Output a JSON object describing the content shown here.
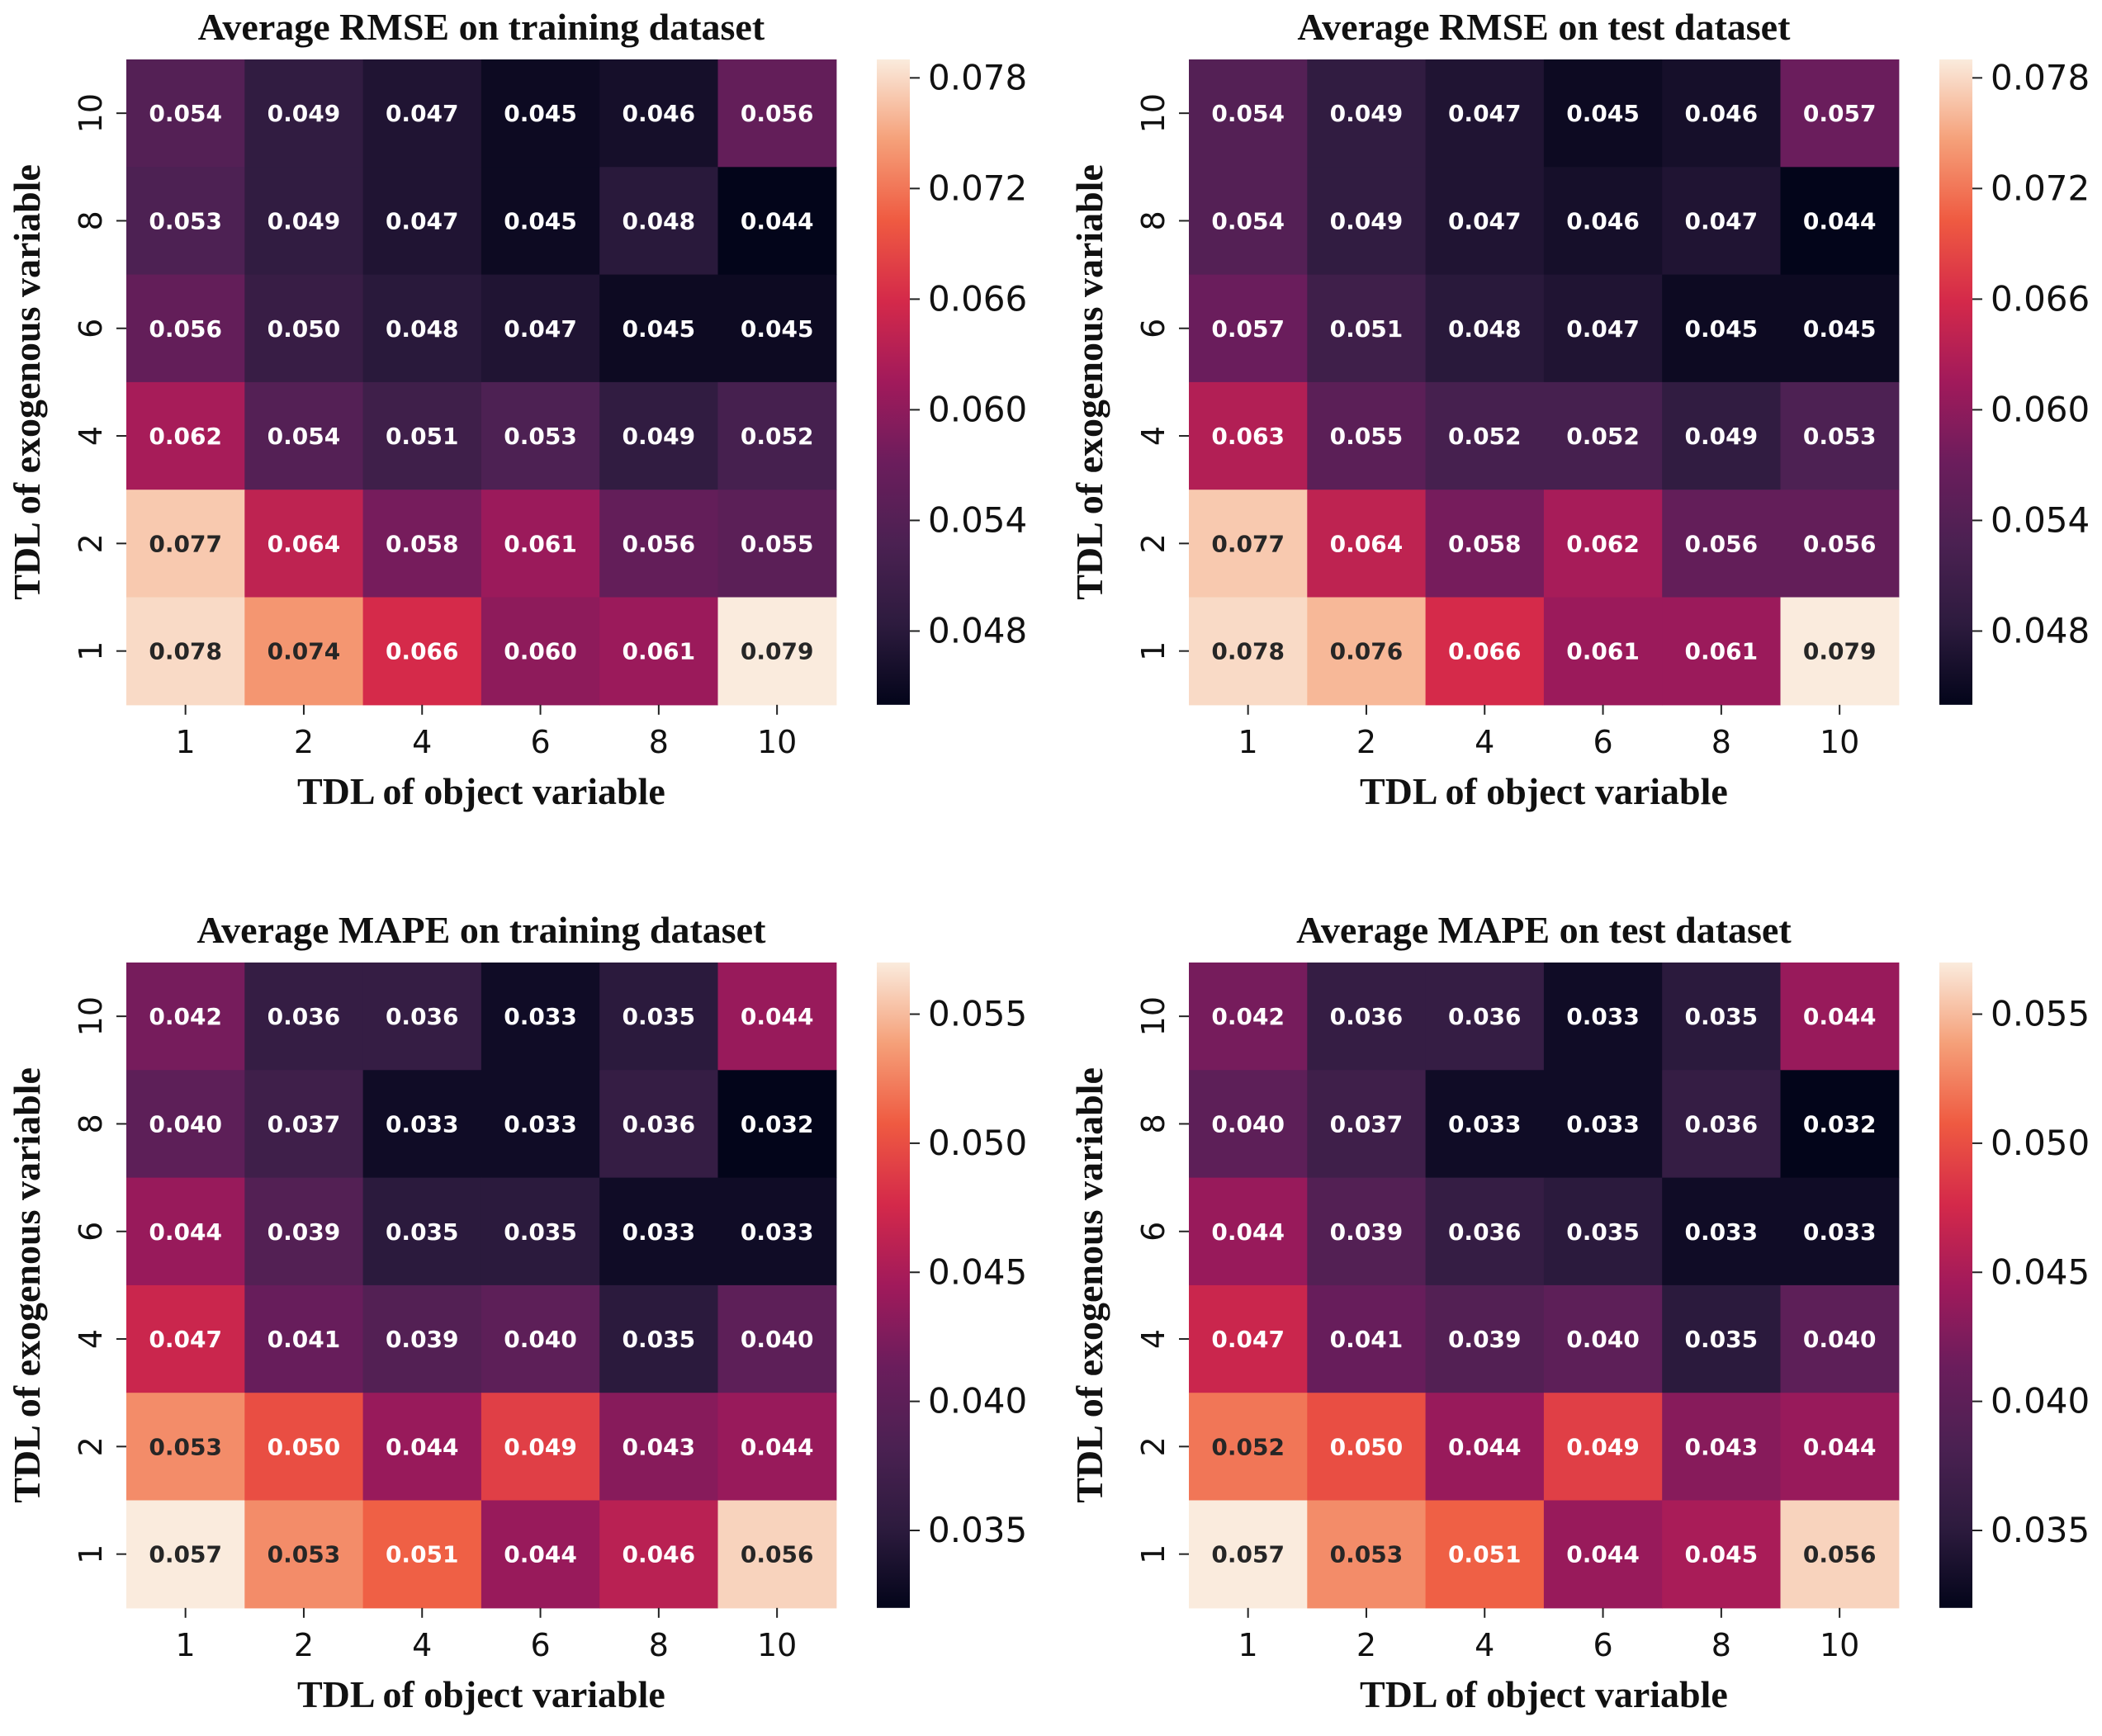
{
  "chart_data": [
    {
      "type": "heatmap",
      "title": "Average RMSE on training dataset",
      "xlabel": "TDL of object variable",
      "ylabel": "TDL of exogenous variable",
      "x_categories": [
        "1",
        "2",
        "4",
        "6",
        "8",
        "10"
      ],
      "y_categories": [
        "10",
        "8",
        "6",
        "4",
        "2",
        "1"
      ],
      "values": [
        [
          0.054,
          0.049,
          0.047,
          0.045,
          0.046,
          0.056
        ],
        [
          0.053,
          0.049,
          0.047,
          0.045,
          0.048,
          0.044
        ],
        [
          0.056,
          0.05,
          0.048,
          0.047,
          0.045,
          0.045
        ],
        [
          0.062,
          0.054,
          0.051,
          0.053,
          0.049,
          0.052
        ],
        [
          0.077,
          0.064,
          0.058,
          0.061,
          0.056,
          0.055
        ],
        [
          0.078,
          0.074,
          0.066,
          0.06,
          0.061,
          0.079
        ]
      ],
      "labels": [
        [
          "0.054",
          "0.049",
          "0.047",
          "0.045",
          "0.046",
          "0.056"
        ],
        [
          "0.053",
          "0.049",
          "0.047",
          "0.045",
          "0.048",
          "0.044"
        ],
        [
          "0.056",
          "0.050",
          "0.048",
          "0.047",
          "0.045",
          "0.045"
        ],
        [
          "0.062",
          "0.054",
          "0.051",
          "0.053",
          "0.049",
          "0.052"
        ],
        [
          "0.077",
          "0.064",
          "0.058",
          "0.061",
          "0.056",
          "0.055"
        ],
        [
          "0.078",
          "0.074",
          "0.066",
          "0.060",
          "0.061",
          "0.079"
        ]
      ],
      "colorbar": {
        "range": [
          0.044,
          0.079
        ],
        "ticks": [
          0.048,
          0.054,
          0.06,
          0.066,
          0.072,
          0.078
        ],
        "tick_labels": [
          "0.048",
          "0.054",
          "0.060",
          "0.066",
          "0.072",
          "0.078"
        ]
      }
    },
    {
      "type": "heatmap",
      "title": "Average RMSE on test dataset",
      "xlabel": "TDL of object variable",
      "ylabel": "TDL of exogenous variable",
      "x_categories": [
        "1",
        "2",
        "4",
        "6",
        "8",
        "10"
      ],
      "y_categories": [
        "10",
        "8",
        "6",
        "4",
        "2",
        "1"
      ],
      "values": [
        [
          0.054,
          0.049,
          0.047,
          0.045,
          0.046,
          0.057
        ],
        [
          0.054,
          0.049,
          0.047,
          0.046,
          0.047,
          0.044
        ],
        [
          0.057,
          0.051,
          0.048,
          0.047,
          0.045,
          0.045
        ],
        [
          0.063,
          0.055,
          0.052,
          0.052,
          0.049,
          0.053
        ],
        [
          0.077,
          0.064,
          0.058,
          0.062,
          0.056,
          0.056
        ],
        [
          0.078,
          0.076,
          0.066,
          0.061,
          0.061,
          0.079
        ]
      ],
      "labels": [
        [
          "0.054",
          "0.049",
          "0.047",
          "0.045",
          "0.046",
          "0.057"
        ],
        [
          "0.054",
          "0.049",
          "0.047",
          "0.046",
          "0.047",
          "0.044"
        ],
        [
          "0.057",
          "0.051",
          "0.048",
          "0.047",
          "0.045",
          "0.045"
        ],
        [
          "0.063",
          "0.055",
          "0.052",
          "0.052",
          "0.049",
          "0.053"
        ],
        [
          "0.077",
          "0.064",
          "0.058",
          "0.062",
          "0.056",
          "0.056"
        ],
        [
          "0.078",
          "0.076",
          "0.066",
          "0.061",
          "0.061",
          "0.079"
        ]
      ],
      "colorbar": {
        "range": [
          0.044,
          0.079
        ],
        "ticks": [
          0.048,
          0.054,
          0.06,
          0.066,
          0.072,
          0.078
        ],
        "tick_labels": [
          "0.048",
          "0.054",
          "0.060",
          "0.066",
          "0.072",
          "0.078"
        ]
      }
    },
    {
      "type": "heatmap",
      "title": "Average MAPE on training dataset",
      "xlabel": "TDL of object variable",
      "ylabel": "TDL of exogenous variable",
      "x_categories": [
        "1",
        "2",
        "4",
        "6",
        "8",
        "10"
      ],
      "y_categories": [
        "10",
        "8",
        "6",
        "4",
        "2",
        "1"
      ],
      "values": [
        [
          0.042,
          0.036,
          0.036,
          0.033,
          0.035,
          0.044
        ],
        [
          0.04,
          0.037,
          0.033,
          0.033,
          0.036,
          0.032
        ],
        [
          0.044,
          0.039,
          0.035,
          0.035,
          0.033,
          0.033
        ],
        [
          0.047,
          0.041,
          0.039,
          0.04,
          0.035,
          0.04
        ],
        [
          0.053,
          0.05,
          0.044,
          0.049,
          0.043,
          0.044
        ],
        [
          0.057,
          0.053,
          0.051,
          0.044,
          0.046,
          0.056
        ]
      ],
      "labels": [
        [
          "0.042",
          "0.036",
          "0.036",
          "0.033",
          "0.035",
          "0.044"
        ],
        [
          "0.040",
          "0.037",
          "0.033",
          "0.033",
          "0.036",
          "0.032"
        ],
        [
          "0.044",
          "0.039",
          "0.035",
          "0.035",
          "0.033",
          "0.033"
        ],
        [
          "0.047",
          "0.041",
          "0.039",
          "0.040",
          "0.035",
          "0.040"
        ],
        [
          "0.053",
          "0.050",
          "0.044",
          "0.049",
          "0.043",
          "0.044"
        ],
        [
          "0.057",
          "0.053",
          "0.051",
          "0.044",
          "0.046",
          "0.056"
        ]
      ],
      "colorbar": {
        "range": [
          0.032,
          0.057
        ],
        "ticks": [
          0.035,
          0.04,
          0.045,
          0.05,
          0.055
        ],
        "tick_labels": [
          "0.035",
          "0.040",
          "0.045",
          "0.050",
          "0.055"
        ]
      }
    },
    {
      "type": "heatmap",
      "title": "Average MAPE on test dataset",
      "xlabel": "TDL of object variable",
      "ylabel": "TDL of exogenous variable",
      "x_categories": [
        "1",
        "2",
        "4",
        "6",
        "8",
        "10"
      ],
      "y_categories": [
        "10",
        "8",
        "6",
        "4",
        "2",
        "1"
      ],
      "values": [
        [
          0.042,
          0.036,
          0.036,
          0.033,
          0.035,
          0.044
        ],
        [
          0.04,
          0.037,
          0.033,
          0.033,
          0.036,
          0.032
        ],
        [
          0.044,
          0.039,
          0.036,
          0.035,
          0.033,
          0.033
        ],
        [
          0.047,
          0.041,
          0.039,
          0.04,
          0.035,
          0.04
        ],
        [
          0.052,
          0.05,
          0.044,
          0.049,
          0.043,
          0.044
        ],
        [
          0.057,
          0.053,
          0.051,
          0.044,
          0.045,
          0.056
        ]
      ],
      "labels": [
        [
          "0.042",
          "0.036",
          "0.036",
          "0.033",
          "0.035",
          "0.044"
        ],
        [
          "0.040",
          "0.037",
          "0.033",
          "0.033",
          "0.036",
          "0.032"
        ],
        [
          "0.044",
          "0.039",
          "0.036",
          "0.035",
          "0.033",
          "0.033"
        ],
        [
          "0.047",
          "0.041",
          "0.039",
          "0.040",
          "0.035",
          "0.040"
        ],
        [
          "0.052",
          "0.050",
          "0.044",
          "0.049",
          "0.043",
          "0.044"
        ],
        [
          "0.057",
          "0.053",
          "0.051",
          "0.044",
          "0.045",
          "0.056"
        ]
      ],
      "colorbar": {
        "range": [
          0.032,
          0.057
        ],
        "ticks": [
          0.035,
          0.04,
          0.045,
          0.05,
          0.055
        ],
        "tick_labels": [
          "0.035",
          "0.040",
          "0.045",
          "0.050",
          "0.055"
        ]
      }
    }
  ]
}
